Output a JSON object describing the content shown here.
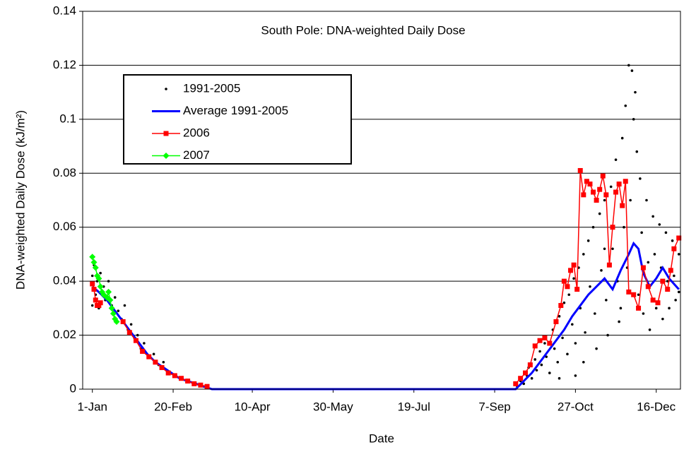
{
  "chart_data": {
    "type": "line",
    "title": "South Pole: DNA-weighted Daily Dose",
    "x_label": "Date",
    "y_label": "DNA-weighted Daily Dose (kJ/m²)",
    "xlim": [
      -5,
      365
    ],
    "ylim": [
      0,
      0.14
    ],
    "xticks": [
      {
        "value": 1,
        "label": "1-Jan"
      },
      {
        "value": 51,
        "label": "20-Feb"
      },
      {
        "value": 100,
        "label": "10-Apr"
      },
      {
        "value": 150,
        "label": "30-May"
      },
      {
        "value": 200,
        "label": "19-Jul"
      },
      {
        "value": 250,
        "label": "7-Sep"
      },
      {
        "value": 300,
        "label": "27-Oct"
      },
      {
        "value": 350,
        "label": "16-Dec"
      }
    ],
    "yticks": [
      0,
      0.02,
      0.04,
      0.06,
      0.08,
      0.1,
      0.12,
      0.14
    ],
    "grid": true,
    "legend": "upper left",
    "series": [
      {
        "name": "1991-2005",
        "color": "#000000",
        "marker": "dot",
        "line": false,
        "x": [
          1,
          1,
          2,
          3,
          4,
          5,
          6,
          8,
          9,
          11,
          13,
          15,
          17,
          19,
          21,
          23,
          25,
          27,
          29,
          31,
          33,
          36,
          39,
          42,
          45,
          48,
          52,
          56,
          60,
          65,
          70,
          264,
          266,
          268,
          270,
          271,
          273,
          275,
          276,
          278,
          279,
          281,
          282,
          284,
          286,
          287,
          289,
          290,
          292,
          293,
          295,
          296,
          298,
          299,
          300,
          302,
          303,
          305,
          306,
          308,
          309,
          311,
          312,
          313,
          315,
          316,
          318,
          319,
          320,
          322,
          323,
          325,
          326,
          327,
          329,
          330,
          331,
          332,
          333,
          334,
          335,
          336,
          337,
          338,
          339,
          340,
          341,
          342,
          344,
          345,
          346,
          348,
          349,
          350,
          352,
          353,
          354,
          356,
          357,
          358,
          360,
          361,
          362,
          364,
          364,
          345,
          328,
          318,
          305,
          300,
          290
        ],
        "values": [
          0.042,
          0.031,
          0.046,
          0.035,
          0.04,
          0.03,
          0.043,
          0.038,
          0.033,
          0.04,
          0.031,
          0.034,
          0.029,
          0.026,
          0.031,
          0.022,
          0.024,
          0.019,
          0.02,
          0.015,
          0.017,
          0.012,
          0.013,
          0.009,
          0.01,
          0.006,
          0.005,
          0.004,
          0.003,
          0.002,
          0.001,
          0.001,
          0.003,
          0.002,
          0.005,
          0.008,
          0.004,
          0.011,
          0.007,
          0.014,
          0.009,
          0.017,
          0.012,
          0.006,
          0.022,
          0.015,
          0.01,
          0.027,
          0.019,
          0.032,
          0.013,
          0.035,
          0.024,
          0.041,
          0.017,
          0.045,
          0.03,
          0.05,
          0.021,
          0.055,
          0.038,
          0.06,
          0.028,
          0.015,
          0.065,
          0.044,
          0.07,
          0.033,
          0.02,
          0.075,
          0.052,
          0.085,
          0.04,
          0.025,
          0.093,
          0.06,
          0.105,
          0.045,
          0.12,
          0.07,
          0.118,
          0.1,
          0.11,
          0.088,
          0.035,
          0.078,
          0.058,
          0.028,
          0.07,
          0.047,
          0.022,
          0.064,
          0.05,
          0.03,
          0.061,
          0.045,
          0.026,
          0.058,
          0.04,
          0.03,
          0.055,
          0.042,
          0.033,
          0.05,
          0.036,
          0.038,
          0.03,
          0.052,
          0.01,
          0.005,
          0.004
        ]
      },
      {
        "name": "Average 1991-2005",
        "color": "#0000ff",
        "marker": "none",
        "line": true,
        "x": [
          1,
          5,
          10,
          15,
          20,
          25,
          30,
          35,
          40,
          45,
          50,
          55,
          60,
          65,
          70,
          75,
          100,
          150,
          200,
          263,
          268,
          273,
          278,
          283,
          288,
          293,
          298,
          303,
          308,
          313,
          318,
          323,
          328,
          333,
          336,
          339,
          342,
          346,
          350,
          354,
          358,
          364
        ],
        "values": [
          0.038,
          0.036,
          0.033,
          0.029,
          0.025,
          0.021,
          0.017,
          0.013,
          0.01,
          0.008,
          0.006,
          0.004,
          0.003,
          0.002,
          0.001,
          0,
          0,
          0,
          0,
          0,
          0.003,
          0.006,
          0.01,
          0.014,
          0.018,
          0.022,
          0.027,
          0.031,
          0.035,
          0.038,
          0.041,
          0.037,
          0.044,
          0.05,
          0.054,
          0.052,
          0.043,
          0.038,
          0.041,
          0.045,
          0.041,
          0.037
        ]
      },
      {
        "name": "2006",
        "color": "#ff0000",
        "marker": "square",
        "line": true,
        "x": [
          1,
          2,
          3,
          4,
          5,
          6,
          13,
          20,
          24,
          28,
          32,
          36,
          40,
          44,
          48,
          52,
          56,
          60,
          64,
          68,
          72,
          170,
          263,
          266,
          269,
          272,
          275,
          278,
          281,
          284,
          288,
          291,
          293,
          295,
          297,
          299,
          301,
          303,
          305,
          307,
          309,
          311,
          313,
          315,
          317,
          319,
          321,
          323,
          325,
          327,
          329,
          331,
          333,
          336,
          339,
          342,
          345,
          348,
          351,
          354,
          357,
          359,
          361,
          364
        ],
        "values": [
          0.039,
          0.037,
          0.033,
          0.031,
          0.031,
          0.032,
          null,
          0.025,
          0.021,
          0.018,
          0.014,
          0.012,
          0.01,
          0.008,
          0.006,
          0.005,
          0.004,
          0.003,
          0.002,
          0.0015,
          0.001,
          null,
          0.002,
          0.004,
          0.006,
          0.009,
          0.016,
          0.018,
          0.019,
          0.017,
          0.025,
          0.031,
          0.04,
          0.038,
          0.044,
          0.046,
          0.037,
          0.081,
          0.072,
          0.077,
          0.076,
          0.073,
          0.07,
          0.074,
          0.079,
          0.072,
          0.046,
          0.06,
          0.073,
          0.076,
          0.068,
          0.077,
          0.036,
          0.035,
          0.03,
          0.045,
          0.038,
          0.033,
          0.032,
          0.04,
          0.037,
          0.044,
          0.052,
          0.056
        ]
      },
      {
        "name": "2007",
        "color": "#00ff00",
        "marker": "diamond",
        "line": true,
        "x": [
          1,
          2,
          3,
          4,
          5,
          6,
          7,
          8,
          10,
          11,
          12,
          13,
          14,
          15,
          16
        ],
        "values": [
          0.049,
          0.047,
          0.045,
          0.042,
          0.041,
          0.038,
          0.036,
          0.035,
          0.034,
          0.036,
          0.033,
          0.03,
          0.028,
          0.026,
          0.025
        ]
      }
    ]
  }
}
